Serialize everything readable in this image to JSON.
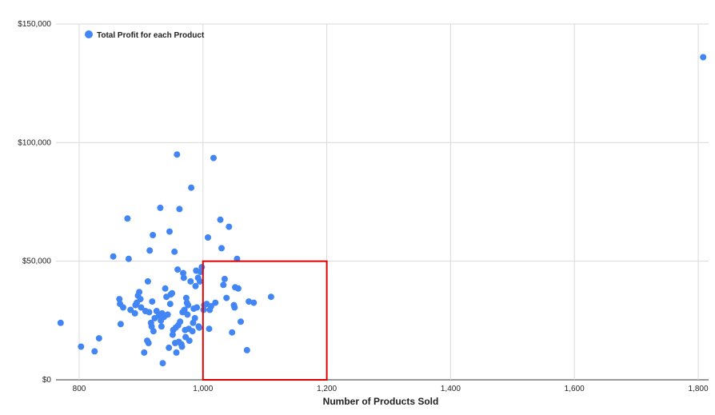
{
  "chart_data": {
    "type": "scatter",
    "title": "",
    "xlabel": "Number of Products Sold",
    "ylabel": "",
    "xlim": [
      770,
      1810
    ],
    "ylim": [
      0,
      150000
    ],
    "x_ticks": [
      800,
      1000,
      1200,
      1400,
      1600,
      1800
    ],
    "x_tick_labels": [
      "800",
      "1,000",
      "1,200",
      "1,400",
      "1,600",
      "1,800"
    ],
    "y_ticks": [
      0,
      50000,
      100000,
      150000
    ],
    "y_tick_labels": [
      "$0",
      "$50,000",
      "$100,000",
      "$150,000"
    ],
    "grid": true,
    "legend_position": "top-left",
    "series": [
      {
        "name": "Total Profit for each Product",
        "color": "#4285f4",
        "points": [
          [
            770,
            24000
          ],
          [
            803,
            14000
          ],
          [
            825,
            12000
          ],
          [
            832,
            17500
          ],
          [
            855,
            52000
          ],
          [
            865,
            34000
          ],
          [
            866,
            32000
          ],
          [
            867,
            23500
          ],
          [
            871,
            30500
          ],
          [
            878,
            68000
          ],
          [
            880,
            51000
          ],
          [
            883,
            29500
          ],
          [
            890,
            28000
          ],
          [
            891,
            31500
          ],
          [
            893,
            32500
          ],
          [
            895,
            35500
          ],
          [
            897,
            37000
          ],
          [
            899,
            34000
          ],
          [
            900,
            30500
          ],
          [
            905,
            11500
          ],
          [
            907,
            29000
          ],
          [
            910,
            16500
          ],
          [
            911,
            41500
          ],
          [
            912,
            15500
          ],
          [
            913,
            28500
          ],
          [
            914,
            54500
          ],
          [
            916,
            24000
          ],
          [
            917,
            22500
          ],
          [
            918,
            33000
          ],
          [
            919,
            61000
          ],
          [
            920,
            20500
          ],
          [
            922,
            26000
          ],
          [
            925,
            29000
          ],
          [
            929,
            27000
          ],
          [
            931,
            72500
          ],
          [
            932,
            25000
          ],
          [
            933,
            22500
          ],
          [
            934,
            28000
          ],
          [
            935,
            7000
          ],
          [
            937,
            26500
          ],
          [
            939,
            38500
          ],
          [
            941,
            35000
          ],
          [
            943,
            27500
          ],
          [
            945,
            13500
          ],
          [
            946,
            62500
          ],
          [
            947,
            32000
          ],
          [
            948,
            36000
          ],
          [
            950,
            36500
          ],
          [
            951,
            19000
          ],
          [
            952,
            21000
          ],
          [
            954,
            54000
          ],
          [
            955,
            15500
          ],
          [
            956,
            22000
          ],
          [
            957,
            11500
          ],
          [
            958,
            95000
          ],
          [
            959,
            46500
          ],
          [
            960,
            23000
          ],
          [
            961,
            16000
          ],
          [
            962,
            72000
          ],
          [
            963,
            24500
          ],
          [
            965,
            15000
          ],
          [
            966,
            14000
          ],
          [
            967,
            28500
          ],
          [
            968,
            45000
          ],
          [
            969,
            43000
          ],
          [
            970,
            29500
          ],
          [
            971,
            21000
          ],
          [
            972,
            18000
          ],
          [
            973,
            34500
          ],
          [
            974,
            32500
          ],
          [
            975,
            27500
          ],
          [
            976,
            31500
          ],
          [
            977,
            21500
          ],
          [
            978,
            16500
          ],
          [
            980,
            41500
          ],
          [
            981,
            81000
          ],
          [
            983,
            20500
          ],
          [
            984,
            24000
          ],
          [
            985,
            30000
          ],
          [
            987,
            26000
          ],
          [
            988,
            39500
          ],
          [
            989,
            46000
          ],
          [
            990,
            30500
          ],
          [
            992,
            43000
          ],
          [
            993,
            22500
          ],
          [
            994,
            22000
          ],
          [
            995,
            41500
          ],
          [
            996,
            45500
          ],
          [
            998,
            47500
          ],
          [
            1001,
            29500
          ],
          [
            1002,
            31500
          ],
          [
            1006,
            32000
          ],
          [
            1008,
            60000
          ],
          [
            1010,
            21500
          ],
          [
            1011,
            29500
          ],
          [
            1013,
            31000
          ],
          [
            1017,
            93500
          ],
          [
            1020,
            32500
          ],
          [
            1028,
            67500
          ],
          [
            1030,
            55500
          ],
          [
            1033,
            40000
          ],
          [
            1035,
            42500
          ],
          [
            1038,
            34500
          ],
          [
            1042,
            64500
          ],
          [
            1047,
            20000
          ],
          [
            1050,
            31500
          ],
          [
            1051,
            30500
          ],
          [
            1052,
            39000
          ],
          [
            1055,
            51000
          ],
          [
            1057,
            38500
          ],
          [
            1061,
            24500
          ],
          [
            1071,
            12500
          ],
          [
            1074,
            33000
          ],
          [
            1082,
            32500
          ],
          [
            1110,
            35000
          ],
          [
            1808,
            136000
          ]
        ]
      }
    ],
    "highlight_box": {
      "x_range": [
        1000,
        1200
      ],
      "y_range": [
        0,
        50000
      ],
      "color": "#e00000"
    }
  }
}
